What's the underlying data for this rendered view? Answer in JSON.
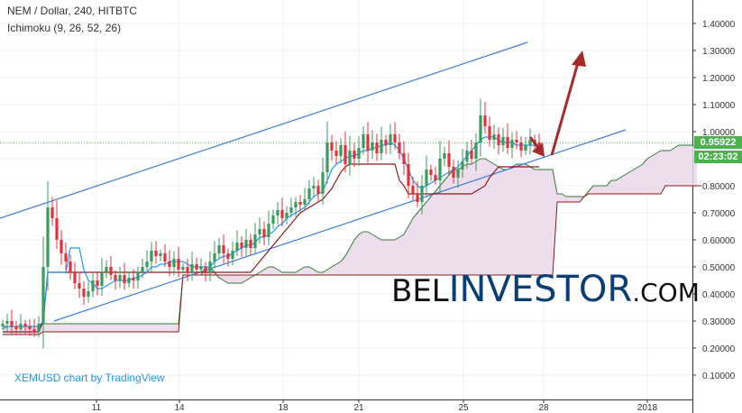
{
  "header": {
    "title": "NEM / Dollar, 240, HITBTC",
    "indicator": "Ichimoku (9, 26, 52, 26)"
  },
  "footer": {
    "credit": "XEMUSD chart by TradingView"
  },
  "watermark": {
    "part1": "BEL",
    "part2": "INVESTOR",
    "part3": ".COM"
  },
  "colors": {
    "bull": "#3a9b5e",
    "bear": "#e0333e",
    "tenkan": "#2196f3",
    "kijun": "#8b1a1a",
    "span_a": "#2f7d32",
    "span_b": "#8b1a1a",
    "cloud": "#ead7ea",
    "channel": "#3b7dd8",
    "arrow": "#a52a2a",
    "price_tag": "#4caf50",
    "timer_tag": "#4caf50"
  },
  "chart_data": {
    "type": "candlestick",
    "y_axis": {
      "range": [
        0.01,
        1.48
      ],
      "ticks": [
        "1.40000",
        "1.30000",
        "1.20000",
        "1.10000",
        "1.00000",
        "0.90000",
        "0.80000",
        "0.70000",
        "0.60000",
        "0.50000",
        "0.40000",
        "0.30000",
        "0.20000",
        "0.10000"
      ]
    },
    "x_axis": {
      "ticks": [
        "11",
        "14",
        "18",
        "21",
        "25",
        "28",
        "2018"
      ]
    },
    "last_price": "0.95922",
    "countdown": "02:23:02",
    "current_price_line": 0.9592,
    "closes": [
      0.29,
      0.3,
      0.28,
      0.27,
      0.29,
      0.28,
      0.27,
      0.26,
      0.29,
      0.5,
      0.72,
      0.68,
      0.6,
      0.55,
      0.52,
      0.48,
      0.44,
      0.42,
      0.39,
      0.41,
      0.45,
      0.43,
      0.48,
      0.5,
      0.47,
      0.45,
      0.47,
      0.44,
      0.46,
      0.45,
      0.48,
      0.5,
      0.52,
      0.56,
      0.54,
      0.55,
      0.52,
      0.5,
      0.53,
      0.49,
      0.5,
      0.48,
      0.51,
      0.49,
      0.5,
      0.48,
      0.52,
      0.55,
      0.58,
      0.55,
      0.53,
      0.56,
      0.59,
      0.57,
      0.6,
      0.57,
      0.62,
      0.64,
      0.61,
      0.66,
      0.69,
      0.71,
      0.68,
      0.7,
      0.72,
      0.74,
      0.73,
      0.75,
      0.79,
      0.8,
      0.77,
      0.85,
      0.96,
      0.93,
      0.91,
      0.95,
      0.88,
      0.93,
      0.9,
      0.94,
      0.99,
      0.93,
      0.96,
      0.92,
      0.97,
      0.95,
      0.99,
      0.96,
      0.92,
      0.88,
      0.8,
      0.77,
      0.74,
      0.8,
      0.86,
      0.84,
      0.82,
      0.9,
      0.92,
      0.87,
      0.83,
      0.86,
      0.89,
      0.93,
      0.9,
      0.96,
      1.06,
      1.02,
      0.97,
      0.99,
      0.95,
      0.98,
      0.94,
      0.97,
      0.96,
      0.93,
      0.95,
      0.97,
      0.96,
      0.95
    ],
    "tenkan": [
      0.27,
      0.28,
      0.28,
      0.28,
      0.28,
      0.28,
      0.28,
      0.28,
      0.28,
      0.3,
      0.48,
      0.48,
      0.48,
      0.48,
      0.48,
      0.57,
      0.57,
      0.57,
      0.49,
      0.45,
      0.44,
      0.42,
      0.42,
      0.43,
      0.44,
      0.45,
      0.45,
      0.45,
      0.45,
      0.46,
      0.46,
      0.47,
      0.48,
      0.5,
      0.5,
      0.51,
      0.51,
      0.52,
      0.52,
      0.52,
      0.52,
      0.51,
      0.5,
      0.5,
      0.5,
      0.5,
      0.5,
      0.52,
      0.53,
      0.54,
      0.54,
      0.55,
      0.56,
      0.57,
      0.58,
      0.58,
      0.59,
      0.61,
      0.61,
      0.62,
      0.63,
      0.65,
      0.66,
      0.68,
      0.69,
      0.7,
      0.71,
      0.72,
      0.74,
      0.76,
      0.77,
      0.78,
      0.82,
      0.86,
      0.88,
      0.89,
      0.9,
      0.91,
      0.91,
      0.92,
      0.93,
      0.93,
      0.94,
      0.94,
      0.95,
      0.95,
      0.96,
      0.95,
      0.93,
      0.9,
      0.86,
      0.82,
      0.8,
      0.79,
      0.8,
      0.81,
      0.82,
      0.83,
      0.84,
      0.85,
      0.86,
      0.87,
      0.89,
      0.91,
      0.93,
      0.95,
      0.97,
      0.98,
      0.98,
      0.98,
      0.97,
      0.96,
      0.96,
      0.96,
      0.95,
      0.95,
      0.95,
      0.95,
      0.95,
      0.95
    ],
    "kijun": [
      0.26,
      0.26,
      0.26,
      0.26,
      0.26,
      0.26,
      0.26,
      0.26,
      0.26,
      0.3,
      0.48,
      0.48,
      0.48,
      0.48,
      0.48,
      0.48,
      0.48,
      0.48,
      0.48,
      0.48,
      0.48,
      0.48,
      0.48,
      0.48,
      0.48,
      0.48,
      0.48,
      0.48,
      0.48,
      0.48,
      0.48,
      0.48,
      0.48,
      0.48,
      0.48,
      0.48,
      0.48,
      0.48,
      0.48,
      0.48,
      0.48,
      0.48,
      0.48,
      0.48,
      0.48,
      0.48,
      0.48,
      0.48,
      0.48,
      0.48,
      0.48,
      0.48,
      0.48,
      0.48,
      0.48,
      0.48,
      0.5,
      0.52,
      0.54,
      0.56,
      0.58,
      0.6,
      0.62,
      0.64,
      0.66,
      0.68,
      0.7,
      0.71,
      0.72,
      0.73,
      0.74,
      0.75,
      0.77,
      0.79,
      0.82,
      0.85,
      0.87,
      0.88,
      0.88,
      0.88,
      0.88,
      0.88,
      0.88,
      0.88,
      0.88,
      0.88,
      0.88,
      0.88,
      0.82,
      0.8,
      0.77,
      0.77,
      0.77,
      0.77,
      0.77,
      0.77,
      0.77,
      0.77,
      0.77,
      0.77,
      0.77,
      0.77,
      0.77,
      0.77,
      0.77,
      0.78,
      0.79,
      0.8,
      0.83,
      0.85,
      0.87,
      0.87,
      0.87,
      0.87,
      0.87,
      0.87,
      0.87,
      0.87,
      0.87,
      0.87
    ],
    "span_a": [
      0.28,
      0.28,
      0.28,
      0.28,
      0.28,
      0.28,
      0.28,
      0.28,
      0.28,
      0.29,
      0.29,
      0.29,
      0.29,
      0.29,
      0.29,
      0.29,
      0.29,
      0.29,
      0.29,
      0.29,
      0.29,
      0.29,
      0.29,
      0.29,
      0.29,
      0.29,
      0.29,
      0.29,
      0.29,
      0.29,
      0.29,
      0.29,
      0.29,
      0.29,
      0.29,
      0.29,
      0.29,
      0.29,
      0.29,
      0.29,
      0.47,
      0.47,
      0.47,
      0.47,
      0.47,
      0.5,
      0.5,
      0.48,
      0.46,
      0.45,
      0.44,
      0.44,
      0.44,
      0.44,
      0.45,
      0.46,
      0.47,
      0.48,
      0.49,
      0.5,
      0.5,
      0.49,
      0.48,
      0.48,
      0.48,
      0.48,
      0.49,
      0.5,
      0.5,
      0.49,
      0.48,
      0.48,
      0.49,
      0.5,
      0.51,
      0.52,
      0.54,
      0.57,
      0.6,
      0.62,
      0.63,
      0.63,
      0.62,
      0.61,
      0.6,
      0.6,
      0.6,
      0.6,
      0.61,
      0.62,
      0.65,
      0.68,
      0.7,
      0.72,
      0.74,
      0.76,
      0.78,
      0.8,
      0.82,
      0.84,
      0.86,
      0.86,
      0.87,
      0.88,
      0.88,
      0.89,
      0.9,
      0.9,
      0.89,
      0.88,
      0.87,
      0.86,
      0.86,
      0.87,
      0.88,
      0.88,
      0.88,
      0.87,
      0.86,
      0.86,
      0.86,
      0.86,
      0.86,
      0.77,
      0.77,
      0.76,
      0.76,
      0.76,
      0.76,
      0.76,
      0.78,
      0.8,
      0.8,
      0.8,
      0.8,
      0.82,
      0.82,
      0.83,
      0.84,
      0.85,
      0.86,
      0.87,
      0.88,
      0.9,
      0.91,
      0.92,
      0.93,
      0.93,
      0.93,
      0.94,
      0.95,
      0.95,
      0.95,
      0.95,
      0.94
    ],
    "span_b": [
      0.25,
      0.25,
      0.25,
      0.25,
      0.25,
      0.25,
      0.25,
      0.25,
      0.25,
      0.26,
      0.26,
      0.26,
      0.26,
      0.26,
      0.26,
      0.26,
      0.26,
      0.26,
      0.26,
      0.26,
      0.26,
      0.26,
      0.26,
      0.26,
      0.26,
      0.26,
      0.26,
      0.26,
      0.26,
      0.26,
      0.26,
      0.26,
      0.26,
      0.26,
      0.26,
      0.26,
      0.26,
      0.26,
      0.26,
      0.26,
      0.47,
      0.47,
      0.47,
      0.47,
      0.47,
      0.47,
      0.47,
      0.47,
      0.47,
      0.47,
      0.47,
      0.47,
      0.47,
      0.47,
      0.47,
      0.47,
      0.47,
      0.47,
      0.47,
      0.47,
      0.47,
      0.47,
      0.47,
      0.47,
      0.47,
      0.47,
      0.47,
      0.47,
      0.47,
      0.47,
      0.47,
      0.47,
      0.47,
      0.47,
      0.47,
      0.47,
      0.47,
      0.47,
      0.47,
      0.47,
      0.47,
      0.47,
      0.47,
      0.47,
      0.47,
      0.47,
      0.47,
      0.47,
      0.47,
      0.47,
      0.47,
      0.47,
      0.47,
      0.47,
      0.47,
      0.47,
      0.47,
      0.47,
      0.47,
      0.47,
      0.47,
      0.47,
      0.47,
      0.47,
      0.47,
      0.47,
      0.47,
      0.47,
      0.47,
      0.47,
      0.47,
      0.47,
      0.47,
      0.47,
      0.47,
      0.47,
      0.47,
      0.47,
      0.47,
      0.47,
      0.47,
      0.47,
      0.47,
      0.74,
      0.74,
      0.74,
      0.74,
      0.74,
      0.74,
      0.76,
      0.77,
      0.77,
      0.77,
      0.77,
      0.77,
      0.77,
      0.77,
      0.77,
      0.77,
      0.77,
      0.77,
      0.77,
      0.77,
      0.77,
      0.77,
      0.77,
      0.77,
      0.8,
      0.8,
      0.8,
      0.8,
      0.8,
      0.8,
      0.8,
      0.8,
      0.8
    ]
  }
}
